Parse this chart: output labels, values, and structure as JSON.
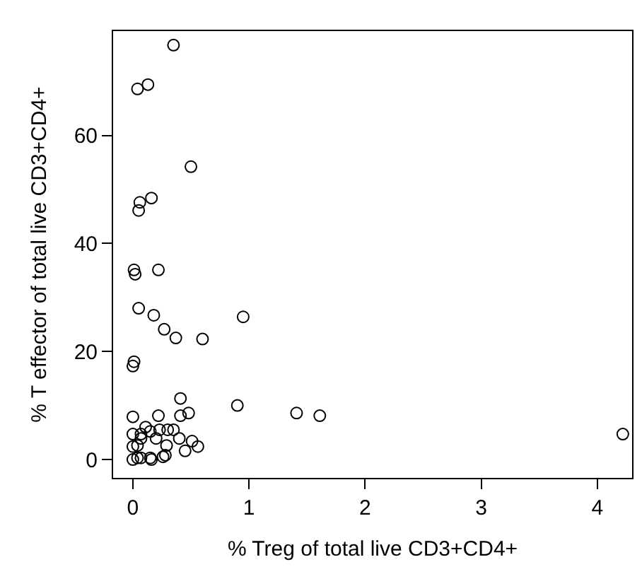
{
  "chart_data": {
    "type": "scatter",
    "xlabel": "% Treg of total live CD3+CD4+",
    "ylabel": "% T effector of total live CD3+CD4+",
    "xlim": [
      -0.17,
      4.3
    ],
    "ylim": [
      -3.4,
      79.3
    ],
    "xticks": [
      0,
      1,
      2,
      3,
      4
    ],
    "yticks": [
      0,
      20,
      40,
      60
    ],
    "marker": "circle",
    "series": [
      {
        "color": "#000000",
        "x": [
          0.35,
          0.04,
          0.13,
          0.5,
          0.16,
          0.06,
          0.05,
          0.01,
          0.02,
          0.22,
          0.05,
          0.18,
          0.27,
          0.37,
          0.6,
          0.95,
          0.01,
          0.0,
          0.41,
          0.9,
          1.41,
          1.61,
          4.22,
          0.0,
          0.22,
          0.41,
          0.48,
          0.11,
          0.0,
          0.07,
          0.15,
          0.23,
          0.3,
          0.35,
          0.4,
          0.51,
          0.56,
          0.29,
          0.45,
          0.0,
          0.04,
          0.07,
          0.2,
          0.0,
          0.04,
          0.07,
          0.15,
          0.16,
          0.26,
          0.28
        ],
        "values": [
          76.7,
          68.6,
          69.4,
          54.2,
          48.4,
          47.6,
          46.1,
          35.1,
          34.3,
          35.1,
          28.0,
          26.7,
          24.1,
          22.5,
          22.3,
          26.4,
          18.1,
          17.3,
          11.3,
          10.0,
          8.6,
          8.1,
          4.7,
          7.9,
          8.1,
          8.1,
          8.6,
          6.0,
          4.7,
          4.7,
          5.2,
          5.5,
          5.5,
          5.5,
          3.9,
          3.4,
          2.4,
          2.6,
          1.6,
          2.4,
          2.6,
          3.9,
          3.9,
          0.0,
          0.3,
          0.3,
          0.3,
          0.0,
          0.5,
          0.8
        ]
      }
    ]
  }
}
